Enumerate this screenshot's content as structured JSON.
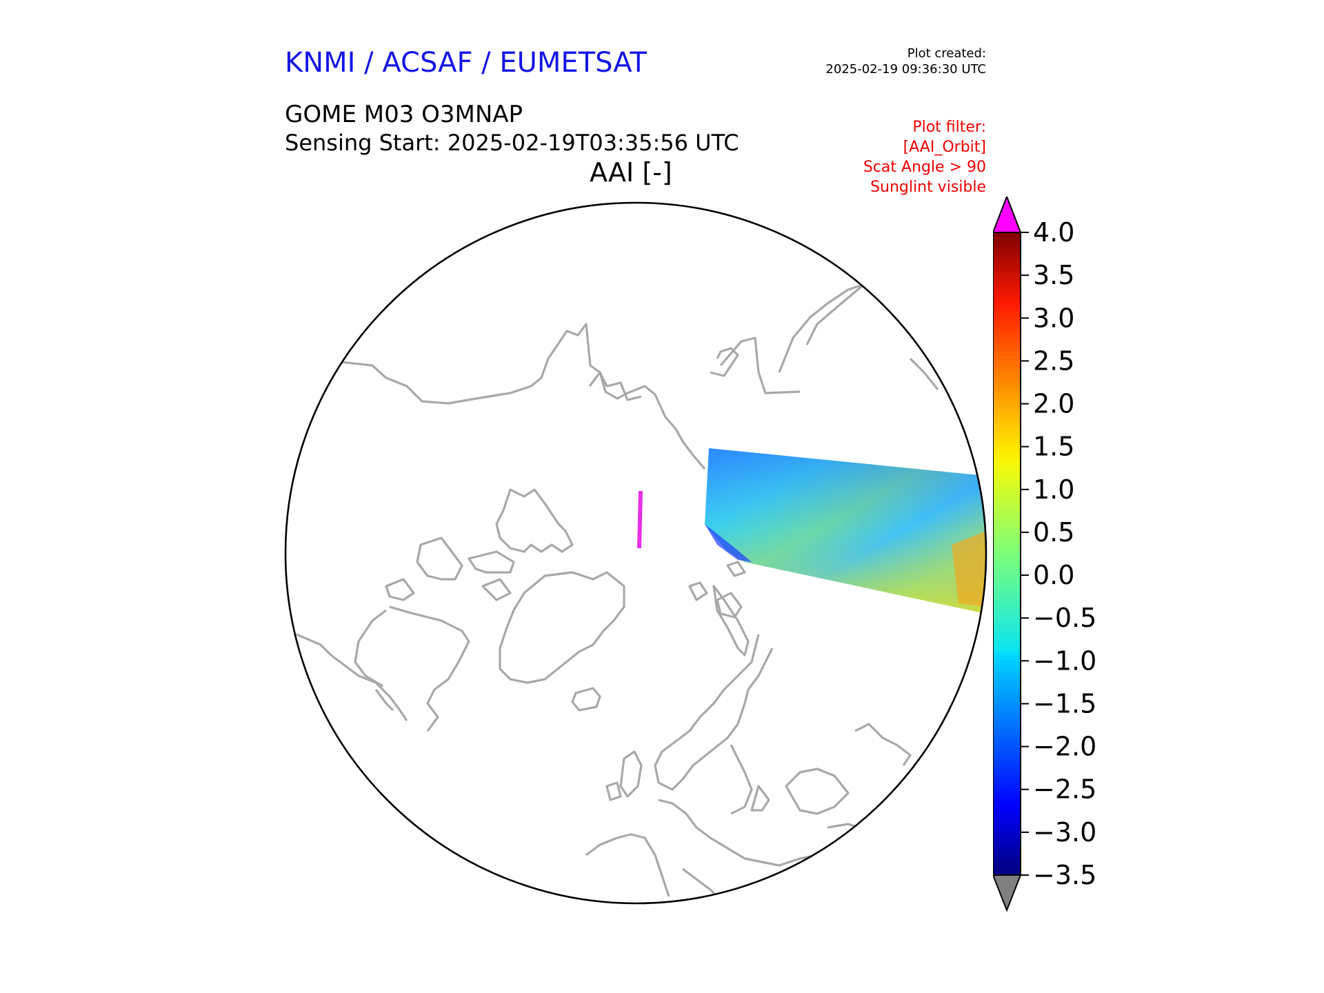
{
  "header": {
    "org": "KNMI / ACSAF / EUMETSAT",
    "created_label": "Plot created:",
    "created_time": "2025-02-19 09:36:30 UTC",
    "product": "GOME M03 O3MNAP",
    "sensing_start": "Sensing Start: 2025-02-19T03:35:56 UTC",
    "variable": "AAI [-]"
  },
  "filter": {
    "line1": "Plot filter:",
    "line2": "[AAI_Orbit]",
    "line3": "Scat Angle > 90",
    "line4": "Sunglint visible"
  },
  "colorbar": {
    "min": -3.5,
    "max": 4.0,
    "ticks": [
      "4.0",
      "3.5",
      "3.0",
      "2.5",
      "2.0",
      "1.5",
      "1.0",
      "0.5",
      "0.0",
      "−0.5",
      "−1.0",
      "−1.5",
      "−2.0",
      "−2.5",
      "−3.0",
      "−3.5"
    ],
    "over_color": "#ff00ff",
    "under_color": "#808080",
    "colormap": "jet"
  },
  "map": {
    "projection": "north-polar-stereographic",
    "coastline_color": "#a8a8a8",
    "boundary_color": "#000000"
  }
}
